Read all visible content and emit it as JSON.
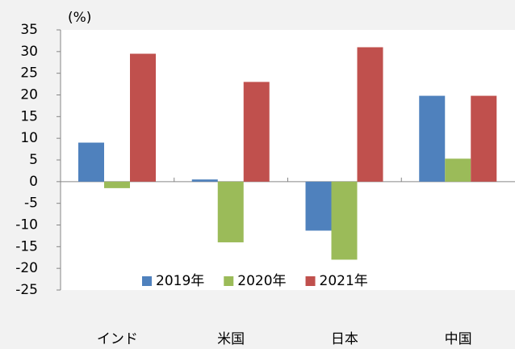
{
  "chart_data": {
    "type": "bar",
    "y_label": "(%)",
    "categories": [
      "インド",
      "米国",
      "日本",
      "中国"
    ],
    "series": [
      {
        "name": "2019年",
        "color": "#4f81bd",
        "values": [
          9,
          0.5,
          -11.3,
          19.8
        ]
      },
      {
        "name": "2020年",
        "color": "#9bbb59",
        "values": [
          -1.5,
          -14,
          -18,
          5.3
        ]
      },
      {
        "name": "2021年",
        "color": "#c0504d",
        "values": [
          29.5,
          23,
          31,
          19.8
        ]
      }
    ],
    "ylim": [
      -25,
      35
    ],
    "yticks": [
      -25,
      -20,
      -15,
      -10,
      -5,
      0,
      5,
      10,
      15,
      20,
      25,
      30,
      35
    ],
    "legend": "bottom"
  }
}
